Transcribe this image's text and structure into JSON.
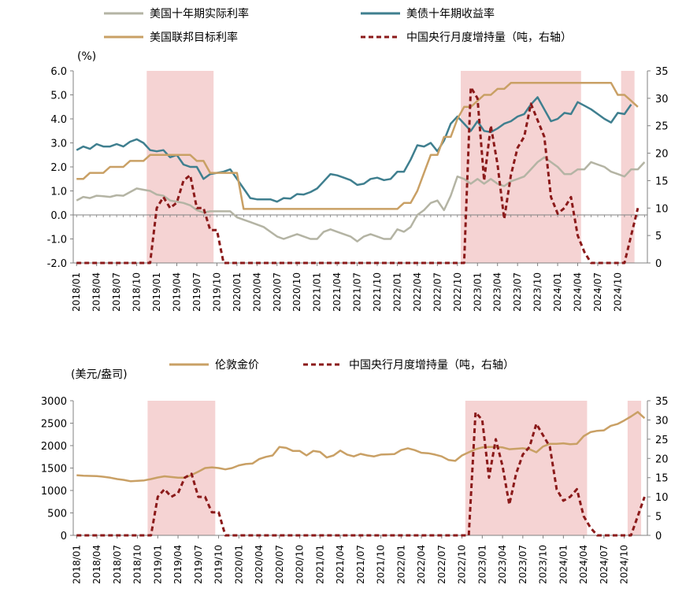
{
  "chart_data": [
    {
      "type": "line",
      "title": "",
      "y_left_unit": "(%)",
      "ylim_left": [
        -2.0,
        6.0
      ],
      "ylim_right": [
        0,
        35
      ],
      "y_left_ticks": [
        "6.0",
        "5.0",
        "4.0",
        "3.0",
        "2.0",
        "1.0",
        "0.0",
        "-1.0",
        "-2.0"
      ],
      "y_right_ticks": [
        "35",
        "30",
        "25",
        "20",
        "15",
        "10",
        "5",
        "0"
      ],
      "x_tick_labels": [
        "2018/01",
        "2018/04",
        "2018/07",
        "2018/10",
        "2019/01",
        "2019/04",
        "2019/07",
        "2019/10",
        "2020/01",
        "2020/04",
        "2020/07",
        "2020/10",
        "2021/01",
        "2021/04",
        "2021/07",
        "2021/10",
        "2022/01",
        "2022/04",
        "2022/07",
        "2022/10",
        "2023/01",
        "2023/04",
        "2023/07",
        "2023/10",
        "2024/01",
        "2024/04",
        "2024/07",
        "2024/10"
      ],
      "shaded_periods": [
        [
          "2018/12",
          "2019/09"
        ],
        [
          "2022/11",
          "2024/04"
        ],
        [
          "2024/11",
          "2024/12"
        ]
      ],
      "legend_position": "top",
      "series": [
        {
          "name": "美国十年期实际利率",
          "axis": "left",
          "color": "#b4b4a4",
          "style": "solid",
          "values": [
            0.6,
            0.75,
            0.7,
            0.8,
            0.78,
            0.75,
            0.82,
            0.8,
            0.95,
            1.1,
            1.05,
            1.0,
            0.85,
            0.8,
            0.6,
            0.55,
            0.5,
            0.4,
            0.2,
            0.1,
            0.15,
            0.15,
            0.15,
            0.15,
            -0.1,
            -0.2,
            -0.3,
            -0.4,
            -0.5,
            -0.7,
            -0.9,
            -1.0,
            -0.9,
            -0.8,
            -0.9,
            -1.0,
            -1.0,
            -0.7,
            -0.6,
            -0.7,
            -0.8,
            -0.9,
            -1.1,
            -0.9,
            -0.8,
            -0.9,
            -1.0,
            -1.0,
            -0.6,
            -0.7,
            -0.5,
            0.0,
            0.2,
            0.5,
            0.6,
            0.2,
            0.8,
            1.6,
            1.5,
            1.3,
            1.5,
            1.3,
            1.5,
            1.3,
            1.2,
            1.4,
            1.5,
            1.6,
            1.9,
            2.2,
            2.4,
            2.2,
            2.0,
            1.7,
            1.7,
            1.9,
            1.9,
            2.2,
            2.1,
            2.0,
            1.8,
            1.7,
            1.6,
            1.9,
            1.9,
            2.2
          ]
        },
        {
          "name": "美债十年期收益率",
          "axis": "left",
          "color": "#3f7f8f",
          "style": "solid",
          "values": [
            2.7,
            2.85,
            2.75,
            2.95,
            2.85,
            2.85,
            2.95,
            2.85,
            3.05,
            3.15,
            3.0,
            2.7,
            2.65,
            2.7,
            2.4,
            2.5,
            2.1,
            2.0,
            2.0,
            1.5,
            1.7,
            1.75,
            1.8,
            1.9,
            1.5,
            1.1,
            0.7,
            0.65,
            0.65,
            0.65,
            0.55,
            0.7,
            0.68,
            0.87,
            0.85,
            0.95,
            1.1,
            1.4,
            1.7,
            1.65,
            1.55,
            1.45,
            1.25,
            1.3,
            1.5,
            1.55,
            1.45,
            1.5,
            1.8,
            1.8,
            2.3,
            2.9,
            2.85,
            3.0,
            2.65,
            3.1,
            3.8,
            4.1,
            3.8,
            3.5,
            3.9,
            3.5,
            3.45,
            3.6,
            3.8,
            3.9,
            4.1,
            4.2,
            4.6,
            4.9,
            4.4,
            3.9,
            4.0,
            4.25,
            4.2,
            4.7,
            4.55,
            4.4,
            4.2,
            4.0,
            3.85,
            4.25,
            4.2,
            4.6
          ]
        },
        {
          "name": "美国联邦目标利率",
          "axis": "left",
          "color": "#c9a065",
          "style": "solid",
          "values": [
            1.5,
            1.5,
            1.75,
            1.75,
            1.75,
            2.0,
            2.0,
            2.0,
            2.25,
            2.25,
            2.25,
            2.5,
            2.5,
            2.5,
            2.5,
            2.5,
            2.5,
            2.5,
            2.25,
            2.25,
            1.75,
            1.75,
            1.75,
            1.75,
            1.75,
            0.25,
            0.25,
            0.25,
            0.25,
            0.25,
            0.25,
            0.25,
            0.25,
            0.25,
            0.25,
            0.25,
            0.25,
            0.25,
            0.25,
            0.25,
            0.25,
            0.25,
            0.25,
            0.25,
            0.25,
            0.25,
            0.25,
            0.25,
            0.25,
            0.5,
            0.5,
            1.0,
            1.75,
            2.5,
            2.5,
            3.25,
            3.25,
            4.0,
            4.5,
            4.5,
            4.75,
            5.0,
            5.0,
            5.25,
            5.25,
            5.5,
            5.5,
            5.5,
            5.5,
            5.5,
            5.5,
            5.5,
            5.5,
            5.5,
            5.5,
            5.5,
            5.5,
            5.5,
            5.5,
            5.5,
            5.5,
            5.0,
            5.0,
            4.75,
            4.5
          ]
        },
        {
          "name": "中国央行月度增持量（吨，右轴）",
          "axis": "right",
          "color": "#8b1a1a",
          "style": "dashed",
          "values": [
            0,
            0,
            0,
            0,
            0,
            0,
            0,
            0,
            0,
            0,
            0,
            0,
            10,
            12,
            10,
            11,
            15,
            16,
            10,
            10,
            6,
            6,
            0,
            0,
            0,
            0,
            0,
            0,
            0,
            0,
            0,
            0,
            0,
            0,
            0,
            0,
            0,
            0,
            0,
            0,
            0,
            0,
            0,
            0,
            0,
            0,
            0,
            0,
            0,
            0,
            0,
            0,
            0,
            0,
            0,
            0,
            0,
            0,
            0,
            32,
            30,
            15,
            25,
            18,
            8,
            16,
            21,
            23,
            29,
            26,
            23,
            12,
            9,
            10,
            12,
            5,
            2,
            0,
            0,
            0,
            0,
            0,
            0,
            5,
            10
          ]
        }
      ]
    },
    {
      "type": "line",
      "title": "",
      "y_left_unit": "(美元/盎司)",
      "ylim_left": [
        0,
        3000
      ],
      "ylim_right": [
        0,
        35
      ],
      "y_left_ticks": [
        "3000",
        "2500",
        "2000",
        "1500",
        "1000",
        "500",
        "0"
      ],
      "y_right_ticks": [
        "35",
        "30",
        "25",
        "20",
        "15",
        "10",
        "5",
        "0"
      ],
      "x_tick_labels": [
        "2018/01",
        "2018/04",
        "2018/07",
        "2018/10",
        "2019/01",
        "2019/04",
        "2019/07",
        "2019/10",
        "2020/01",
        "2020/04",
        "2020/07",
        "2020/10",
        "2021/01",
        "2021/04",
        "2021/07",
        "2021/10",
        "2022/01",
        "2022/04",
        "2022/07",
        "2022/10",
        "2023/01",
        "2023/04",
        "2023/07",
        "2023/10",
        "2024/01",
        "2024/04",
        "2024/07",
        "2024/10"
      ],
      "shaded_periods": [
        [
          "2018/12",
          "2019/09"
        ],
        [
          "2022/11",
          "2024/04"
        ],
        [
          "2024/11",
          "2024/12"
        ]
      ],
      "legend_position": "top",
      "series": [
        {
          "name": "伦敦金价",
          "axis": "left",
          "color": "#c9a065",
          "style": "solid",
          "values": [
            1340,
            1330,
            1325,
            1320,
            1305,
            1285,
            1255,
            1235,
            1205,
            1215,
            1225,
            1255,
            1290,
            1315,
            1300,
            1285,
            1285,
            1345,
            1420,
            1500,
            1515,
            1500,
            1470,
            1500,
            1560,
            1590,
            1600,
            1700,
            1750,
            1780,
            1970,
            1950,
            1880,
            1880,
            1780,
            1880,
            1860,
            1735,
            1780,
            1890,
            1800,
            1760,
            1815,
            1780,
            1760,
            1800,
            1805,
            1810,
            1900,
            1940,
            1900,
            1840,
            1830,
            1800,
            1760,
            1680,
            1660,
            1780,
            1850,
            1920,
            1960,
            1970,
            1970,
            1960,
            1920,
            1930,
            1940,
            1920,
            1850,
            1980,
            2040,
            2040,
            2050,
            2030,
            2040,
            2210,
            2300,
            2330,
            2340,
            2440,
            2480,
            2560,
            2650,
            2750,
            2610
          ]
        },
        {
          "name": "中国央行月度增持量（吨，右轴）",
          "axis": "right",
          "color": "#8b1a1a",
          "style": "dashed",
          "values": [
            0,
            0,
            0,
            0,
            0,
            0,
            0,
            0,
            0,
            0,
            0,
            0,
            10,
            12,
            10,
            11,
            15,
            16,
            10,
            10,
            6,
            6,
            0,
            0,
            0,
            0,
            0,
            0,
            0,
            0,
            0,
            0,
            0,
            0,
            0,
            0,
            0,
            0,
            0,
            0,
            0,
            0,
            0,
            0,
            0,
            0,
            0,
            0,
            0,
            0,
            0,
            0,
            0,
            0,
            0,
            0,
            0,
            0,
            0,
            32,
            30,
            15,
            25,
            18,
            8,
            16,
            21,
            23,
            29,
            26,
            23,
            12,
            9,
            10,
            12,
            5,
            2,
            0,
            0,
            0,
            0,
            0,
            0,
            5,
            10
          ]
        }
      ]
    }
  ]
}
